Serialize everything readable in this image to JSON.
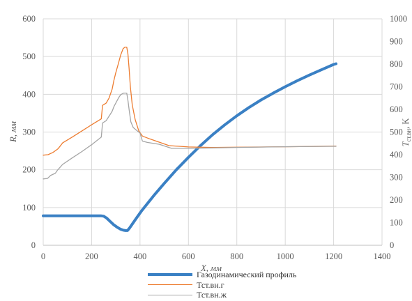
{
  "chart_data": {
    "type": "line",
    "xlabel": "X, мм",
    "ylabel": "R, мм",
    "y2label_main": "T",
    "y2label_sub": "ст.вн",
    "y2label_unit": ", K",
    "xlim": [
      0,
      1400
    ],
    "ylim": [
      0,
      600
    ],
    "y2lim": [
      0,
      1000
    ],
    "x_ticks": [
      "0",
      "200",
      "400",
      "600",
      "800",
      "1000",
      "1200",
      "1400"
    ],
    "y_ticks": [
      "0",
      "100",
      "200",
      "300",
      "400",
      "500",
      "600"
    ],
    "y2_ticks": [
      "0",
      "100",
      "200",
      "300",
      "400",
      "500",
      "600",
      "700",
      "800",
      "900",
      "1000"
    ],
    "grid": true,
    "legend_position": "bottom",
    "series": [
      {
        "name": "Газодинамический профиль",
        "axis": "left",
        "color": "#3a80c4",
        "points": [
          [
            0,
            78
          ],
          [
            50,
            78
          ],
          [
            100,
            78
          ],
          [
            150,
            78
          ],
          [
            200,
            78
          ],
          [
            240,
            78
          ],
          [
            250,
            77
          ],
          [
            262,
            72
          ],
          [
            275,
            64
          ],
          [
            290,
            55
          ],
          [
            305,
            48
          ],
          [
            318,
            43
          ],
          [
            330,
            40
          ],
          [
            340,
            39
          ],
          [
            348,
            39
          ],
          [
            356,
            45
          ],
          [
            368,
            56
          ],
          [
            385,
            72
          ],
          [
            405,
            90
          ],
          [
            430,
            110
          ],
          [
            460,
            134
          ],
          [
            500,
            164
          ],
          [
            550,
            200
          ],
          [
            600,
            233
          ],
          [
            650,
            264
          ],
          [
            700,
            293
          ],
          [
            750,
            319
          ],
          [
            800,
            343
          ],
          [
            850,
            365
          ],
          [
            900,
            385
          ],
          [
            950,
            403
          ],
          [
            1000,
            420
          ],
          [
            1050,
            436
          ],
          [
            1100,
            451
          ],
          [
            1150,
            465
          ],
          [
            1200,
            479
          ],
          [
            1210,
            481
          ]
        ]
      },
      {
        "name": "Тст.вн.г",
        "axis": "right",
        "color": "#ed7d31",
        "points": [
          [
            0,
            398
          ],
          [
            20,
            400
          ],
          [
            40,
            410
          ],
          [
            60,
            425
          ],
          [
            70,
            438
          ],
          [
            80,
            452
          ],
          [
            120,
            478
          ],
          [
            160,
            505
          ],
          [
            200,
            532
          ],
          [
            240,
            558
          ],
          [
            245,
            618
          ],
          [
            260,
            628
          ],
          [
            272,
            650
          ],
          [
            285,
            690
          ],
          [
            292,
            728
          ],
          [
            300,
            762
          ],
          [
            310,
            800
          ],
          [
            320,
            840
          ],
          [
            330,
            868
          ],
          [
            338,
            875
          ],
          [
            345,
            875
          ],
          [
            350,
            845
          ],
          [
            355,
            780
          ],
          [
            360,
            700
          ],
          [
            368,
            620
          ],
          [
            380,
            555
          ],
          [
            395,
            505
          ],
          [
            410,
            482
          ],
          [
            440,
            470
          ],
          [
            480,
            455
          ],
          [
            520,
            440
          ],
          [
            600,
            434
          ],
          [
            700,
            432
          ],
          [
            800,
            433
          ],
          [
            1000,
            435
          ],
          [
            1200,
            438
          ],
          [
            1210,
            438
          ]
        ]
      },
      {
        "name": "Тст.вн.ж",
        "axis": "right",
        "color": "#a5a5a5",
        "points": [
          [
            0,
            293
          ],
          [
            18,
            295
          ],
          [
            30,
            308
          ],
          [
            50,
            318
          ],
          [
            60,
            333
          ],
          [
            70,
            345
          ],
          [
            80,
            357
          ],
          [
            120,
            386
          ],
          [
            160,
            414
          ],
          [
            200,
            444
          ],
          [
            240,
            478
          ],
          [
            245,
            540
          ],
          [
            260,
            550
          ],
          [
            275,
            575
          ],
          [
            285,
            592
          ],
          [
            292,
            612
          ],
          [
            300,
            628
          ],
          [
            312,
            652
          ],
          [
            320,
            665
          ],
          [
            332,
            672
          ],
          [
            345,
            672
          ],
          [
            350,
            640
          ],
          [
            356,
            590
          ],
          [
            362,
            545
          ],
          [
            372,
            520
          ],
          [
            385,
            508
          ],
          [
            400,
            495
          ],
          [
            410,
            460
          ],
          [
            430,
            454
          ],
          [
            480,
            446
          ],
          [
            530,
            428
          ],
          [
            600,
            428
          ],
          [
            700,
            430
          ],
          [
            800,
            432
          ],
          [
            1000,
            435
          ],
          [
            1200,
            437
          ],
          [
            1210,
            437
          ]
        ]
      }
    ]
  }
}
